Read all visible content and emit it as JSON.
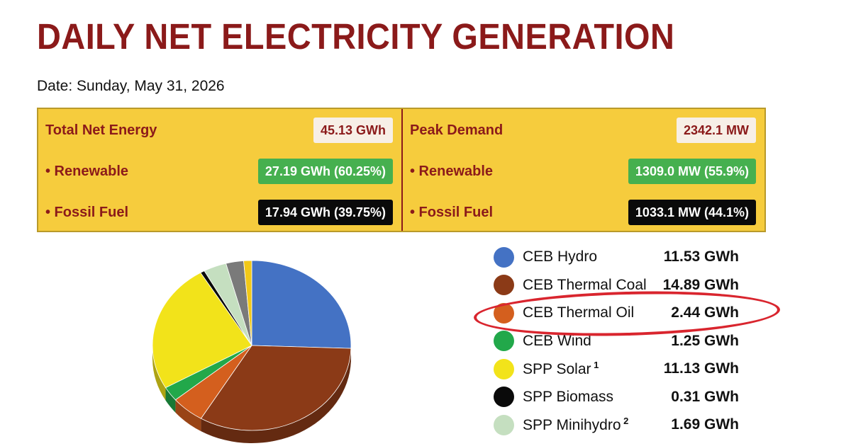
{
  "chart_data": {
    "type": "pie",
    "title": "DAILY NET ELECTRICITY GENERATION",
    "date": "Date: Sunday, May 31, 2026",
    "unit": "GWh",
    "summary": {
      "energy": {
        "label": "Total Net Energy",
        "value": "45.13 GWh",
        "renewable_label": "• Renewable",
        "renewable_value": "27.19 GWh (60.25%)",
        "fossil_label": "• Fossil Fuel",
        "fossil_value": "17.94 GWh (39.75%)"
      },
      "demand": {
        "label": "Peak Demand",
        "value": "2342.1 MW",
        "renewable_label": "• Renewable",
        "renewable_value": "1309.0 MW (55.9%)",
        "fossil_label": "• Fossil Fuel",
        "fossil_value": "1033.1 MW (44.1%)"
      }
    },
    "slices": [
      {
        "label": "CEB Hydro",
        "value": 11.53,
        "display": "11.53 GWh",
        "color": "#4472c4"
      },
      {
        "label": "CEB Thermal Coal",
        "value": 14.89,
        "display": "14.89 GWh",
        "color": "#8b3a17"
      },
      {
        "label": "CEB Thermal Oil",
        "value": 2.44,
        "display": "2.44 GWh",
        "color": "#d45f1e"
      },
      {
        "label": "CEB Wind",
        "value": 1.25,
        "display": "1.25 GWh",
        "color": "#22a84a"
      },
      {
        "label": "SPP Solar",
        "note": "1",
        "value": 11.13,
        "display": "11.13 GWh",
        "color": "#f2e31a"
      },
      {
        "label": "SPP Biomass",
        "value": 0.31,
        "display": "0.31 GWh",
        "color": "#0a0a0a"
      },
      {
        "label": "SPP Minihydro",
        "note": "2",
        "value": 1.69,
        "display": "1.69 GWh",
        "color": "#c5dfc0"
      },
      {
        "label": "",
        "value": 1.3,
        "display": "",
        "color": "#7a7a7a"
      },
      {
        "label": "",
        "value": 0.59,
        "display": "",
        "color": "#f2c818"
      }
    ],
    "highlighted": "CEB Thermal Oil"
  }
}
